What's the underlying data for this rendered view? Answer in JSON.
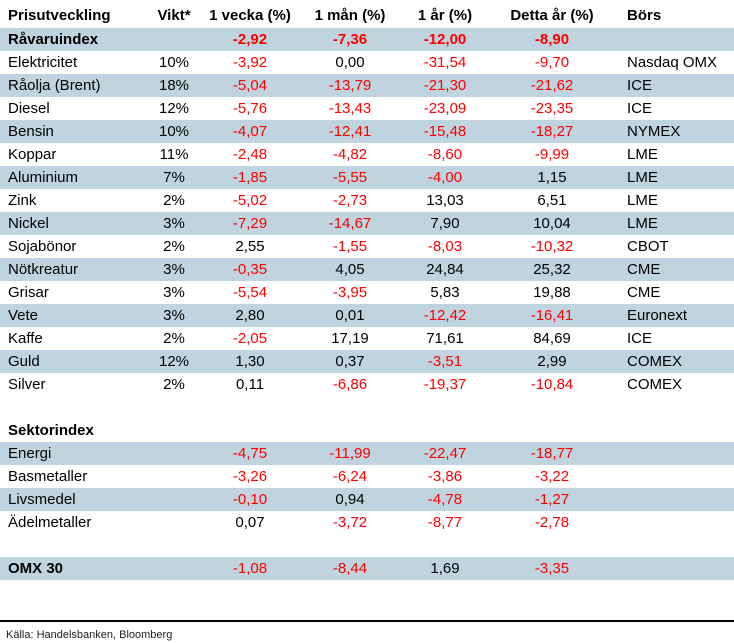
{
  "colors": {
    "row_band": "#bfd4de",
    "negative": "#ff0000",
    "text": "#000000"
  },
  "table": {
    "columns": [
      {
        "label": "Prisutveckling"
      },
      {
        "label": "Vikt*"
      },
      {
        "label": "1 vecka (%)"
      },
      {
        "label": "1 mån (%)"
      },
      {
        "label": "1 år (%)"
      },
      {
        "label": "Detta år (%)"
      },
      {
        "label": "Börs"
      }
    ],
    "rows": [
      {
        "name": "Råvaruindex",
        "vikt": "",
        "week1": "-2,92",
        "month1": "-7,36",
        "year1": "-12,00",
        "ytd": "-8,90",
        "exchange": "",
        "shaded": true,
        "style": "index"
      },
      {
        "name": "Elektricitet",
        "vikt": "10%",
        "week1": "-3,92",
        "month1": "0,00",
        "year1": "-31,54",
        "ytd": "-9,70",
        "exchange": "Nasdaq OMX",
        "shaded": false,
        "style": "normal"
      },
      {
        "name": "Råolja (Brent)",
        "vikt": "18%",
        "week1": "-5,04",
        "month1": "-13,79",
        "year1": "-21,30",
        "ytd": "-21,62",
        "exchange": "ICE",
        "shaded": true,
        "style": "normal"
      },
      {
        "name": "Diesel",
        "vikt": "12%",
        "week1": "-5,76",
        "month1": "-13,43",
        "year1": "-23,09",
        "ytd": "-23,35",
        "exchange": "ICE",
        "shaded": false,
        "style": "normal"
      },
      {
        "name": "Bensin",
        "vikt": "10%",
        "week1": "-4,07",
        "month1": "-12,41",
        "year1": "-15,48",
        "ytd": "-18,27",
        "exchange": "NYMEX",
        "shaded": true,
        "style": "normal"
      },
      {
        "name": "Koppar",
        "vikt": "11%",
        "week1": "-2,48",
        "month1": "-4,82",
        "year1": "-8,60",
        "ytd": "-9,99",
        "exchange": "LME",
        "shaded": false,
        "style": "normal"
      },
      {
        "name": "Aluminium",
        "vikt": "7%",
        "week1": "-1,85",
        "month1": "-5,55",
        "year1": "-4,00",
        "ytd": "1,15",
        "exchange": "LME",
        "shaded": true,
        "style": "normal"
      },
      {
        "name": "Zink",
        "vikt": "2%",
        "week1": "-5,02",
        "month1": "-2,73",
        "year1": "13,03",
        "ytd": "6,51",
        "exchange": "LME",
        "shaded": false,
        "style": "normal"
      },
      {
        "name": "Nickel",
        "vikt": "3%",
        "week1": "-7,29",
        "month1": "-14,67",
        "year1": "7,90",
        "ytd": "10,04",
        "exchange": "LME",
        "shaded": true,
        "style": "normal"
      },
      {
        "name": "Sojabönor",
        "vikt": "2%",
        "week1": "2,55",
        "month1": "-1,55",
        "year1": "-8,03",
        "ytd": "-10,32",
        "exchange": "CBOT",
        "shaded": false,
        "style": "normal"
      },
      {
        "name": "Nötkreatur",
        "vikt": "3%",
        "week1": "-0,35",
        "month1": "4,05",
        "year1": "24,84",
        "ytd": "25,32",
        "exchange": "CME",
        "shaded": true,
        "style": "normal"
      },
      {
        "name": "Grisar",
        "vikt": "3%",
        "week1": "-5,54",
        "month1": "-3,95",
        "year1": "5,83",
        "ytd": "19,88",
        "exchange": "CME",
        "shaded": false,
        "style": "normal"
      },
      {
        "name": "Vete",
        "vikt": "3%",
        "week1": "2,80",
        "month1": "0,01",
        "year1": "-12,42",
        "ytd": "-16,41",
        "exchange": "Euronext",
        "shaded": true,
        "style": "normal"
      },
      {
        "name": "Kaffe",
        "vikt": "2%",
        "week1": "-2,05",
        "month1": "17,19",
        "year1": "71,61",
        "ytd": "84,69",
        "exchange": "ICE",
        "shaded": false,
        "style": "normal"
      },
      {
        "name": "Guld",
        "vikt": "12%",
        "week1": "1,30",
        "month1": "0,37",
        "year1": "-3,51",
        "ytd": "2,99",
        "exchange": "COMEX",
        "shaded": true,
        "style": "normal"
      },
      {
        "name": "Silver",
        "vikt": "2%",
        "week1": "0,11",
        "month1": "-6,86",
        "year1": "-19,37",
        "ytd": "-10,84",
        "exchange": "COMEX",
        "shaded": false,
        "style": "normal"
      },
      {
        "name": "",
        "vikt": "",
        "week1": "",
        "month1": "",
        "year1": "",
        "ytd": "",
        "exchange": "",
        "shaded": false,
        "style": "spacer"
      },
      {
        "name": "Sektorindex",
        "vikt": "",
        "week1": "",
        "month1": "",
        "year1": "",
        "ytd": "",
        "exchange": "",
        "shaded": false,
        "style": "section"
      },
      {
        "name": "Energi",
        "vikt": "",
        "week1": "-4,75",
        "month1": "-11,99",
        "year1": "-22,47",
        "ytd": "-18,77",
        "exchange": "",
        "shaded": true,
        "style": "normal"
      },
      {
        "name": "Basmetaller",
        "vikt": "",
        "week1": "-3,26",
        "month1": "-6,24",
        "year1": "-3,86",
        "ytd": "-3,22",
        "exchange": "",
        "shaded": false,
        "style": "normal"
      },
      {
        "name": "Livsmedel",
        "vikt": "",
        "week1": "-0,10",
        "month1": "0,94",
        "year1": "-4,78",
        "ytd": "-1,27",
        "exchange": "",
        "shaded": true,
        "style": "normal"
      },
      {
        "name": "Ädelmetaller",
        "vikt": "",
        "week1": "0,07",
        "month1": "-3,72",
        "year1": "-8,77",
        "ytd": "-2,78",
        "exchange": "",
        "shaded": false,
        "style": "normal"
      },
      {
        "name": "",
        "vikt": "",
        "week1": "",
        "month1": "",
        "year1": "",
        "ytd": "",
        "exchange": "",
        "shaded": false,
        "style": "spacer"
      },
      {
        "name": "OMX 30",
        "vikt": "",
        "week1": "-1,08",
        "month1": "-8,44",
        "year1": "1,69",
        "ytd": "-3,35",
        "exchange": "",
        "shaded": true,
        "style": "section"
      }
    ]
  },
  "footer": {
    "source": "Källa: Handelsbanken, Bloomberg"
  }
}
